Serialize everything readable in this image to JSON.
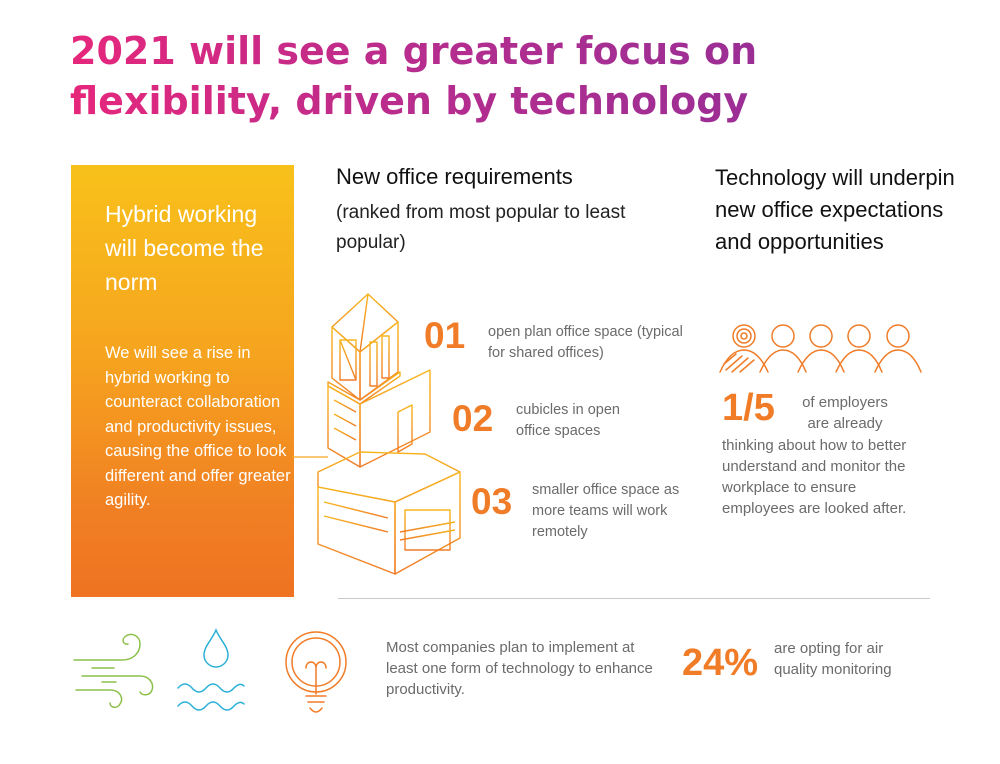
{
  "title": "2021 will see a greater focus on flexibility, driven by technology",
  "hybrid": {
    "heading": "Hybrid working will become the norm",
    "body": "We will see a rise in hybrid working to counteract collaboration and productivity issues, causing the office to look different and offer greater agility."
  },
  "requirements": {
    "heading": "New office requirements",
    "subheading": "(ranked from most popular to least popular)",
    "items": [
      {
        "rank": "01",
        "text": "open plan office space (typical for shared offices)"
      },
      {
        "rank": "02",
        "text": "cubicles in open office spaces"
      },
      {
        "rank": "03",
        "text": "smaller office space as more teams will work remotely"
      }
    ]
  },
  "technology": {
    "heading": "Technology will underpin new office expectations and opportunities",
    "stat_value": "1/5",
    "stat_lead": "of employers are already",
    "stat_rest": "thinking about how to better understand and monitor the workplace to ensure employees are looked after."
  },
  "bottom": {
    "text": "Most companies plan to implement at least one form of technology to enhance productivity.",
    "stat_value": "24%",
    "stat_text": "are opting for air quality monitoring"
  },
  "icons": [
    "building-stack-icon",
    "people-group-icon",
    "wind-icon",
    "water-drop-icon",
    "lightbulb-icon"
  ],
  "colors": {
    "title_gradient_start": "#e6277c",
    "title_gradient_end": "#8a2f99",
    "orange": "#f07c28",
    "box_top": "#f8c11a",
    "box_bottom": "#ef7322",
    "wind_green": "#8cc04b",
    "water_blue": "#2bb0d6"
  }
}
